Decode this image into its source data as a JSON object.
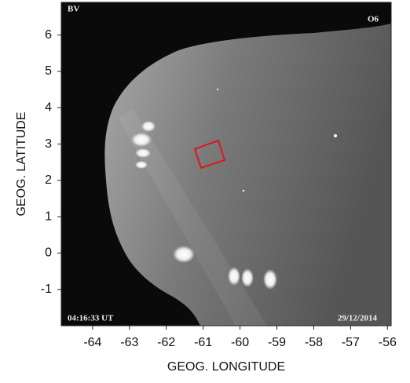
{
  "chart_data": {
    "type": "image",
    "title": "BV",
    "annotations": [
      "O6",
      "04:16:33 UT",
      "29/12/2014"
    ],
    "x_label": "GEOG. LONGITUDE",
    "y_label": "GEOG. LATITUDE",
    "xlim": [
      -64.85,
      -55.9
    ],
    "xticks": [
      -64,
      -63,
      -62,
      -61,
      -60,
      -59,
      -58,
      -57,
      -56
    ],
    "ylim": [
      -2.0,
      6.9
    ],
    "yticks": [
      -1,
      0,
      1,
      2,
      3,
      4,
      5,
      6
    ]
  }
}
